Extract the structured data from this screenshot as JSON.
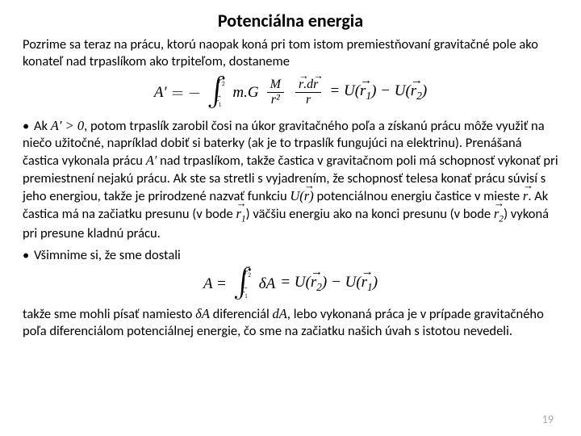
{
  "title": "Potenciálna energia",
  "intro": "Pozrime sa teraz na prácu, ktorú naopak koná pri tom istom premiestňovaní gravitačné pole ako konateľ nad trpaslíkom ako trpiteľom, dostaneme",
  "equation1": {
    "lhs": "A′",
    "minus": " = − ",
    "int_lower": "r⃗₁",
    "int_upper": "r⃗₂",
    "mG": "m.G",
    "frac1_num": "M",
    "frac1_den": "r²",
    "frac2_num": "r⃗.dr⃗",
    "frac2_den": "r",
    "rhs": " = U(r⃗₁) − U(r⃗₂)"
  },
  "bullet1_pre": "Ak ",
  "bullet1_cond": "A′ > 0",
  "bullet1_text": ", potom trpaslík zarobil čosi na úkor gravitačného poľa a získanú prácu môže využiť na niečo užitočné, napríklad dobiť si baterky (ak je to trpaslík fungujúci na elektrinu). Prenášaná častica vykonala prácu ",
  "bullet1_apr": "A′",
  "bullet1_text2": " nad trpaslíkom, takže častica v gravitačnom poli má schopnosť vykonať pri premiestnení nejakú prácu. Ak ste sa stretli s vyjadrením, že schopnosť telesa konať prácu súvisí s jeho energiou, takže je prirodzené nazvať funkciu ",
  "bullet1_ufn": "U(r⃗)",
  "bullet1_text3": " potenciálnou energiu častice v mieste ",
  "bullet1_rvec": "r⃗",
  "bullet1_text4": ". Ak častica má na začiatku presunu (v bode ",
  "bullet1_r1": "r⃗₁",
  "bullet1_text5": ") väčšiu energiu ako na konci presunu (v bode ",
  "bullet1_r2": "r⃗₂",
  "bullet1_text6": ") vykoná pri presune kladnú prácu.",
  "bullet2": "Všimnime si, že sme dostali",
  "equation2": {
    "lhs": "A = ",
    "int_lower": "r⃗₁",
    "int_upper": "r⃗₂",
    "integrand": "δA",
    "rhs": " = U(r⃗₂) − U(r⃗₁)"
  },
  "bullet3_pre": "takže sme mohli písať namiesto ",
  "bullet3_dA": "δA",
  "bullet3_mid": " diferenciál ",
  "bullet3_ddA": "dA",
  "bullet3_text": ", lebo vykonaná práca je v prípade gravitačného poľa diferenciálom potenciálnej energie, čo sme na začiatku našich úvah s istotou nevedeli.",
  "page_number": "19",
  "colors": {
    "text": "#000000",
    "bg": "#ffffff",
    "page_num": "#a6a6a6"
  }
}
